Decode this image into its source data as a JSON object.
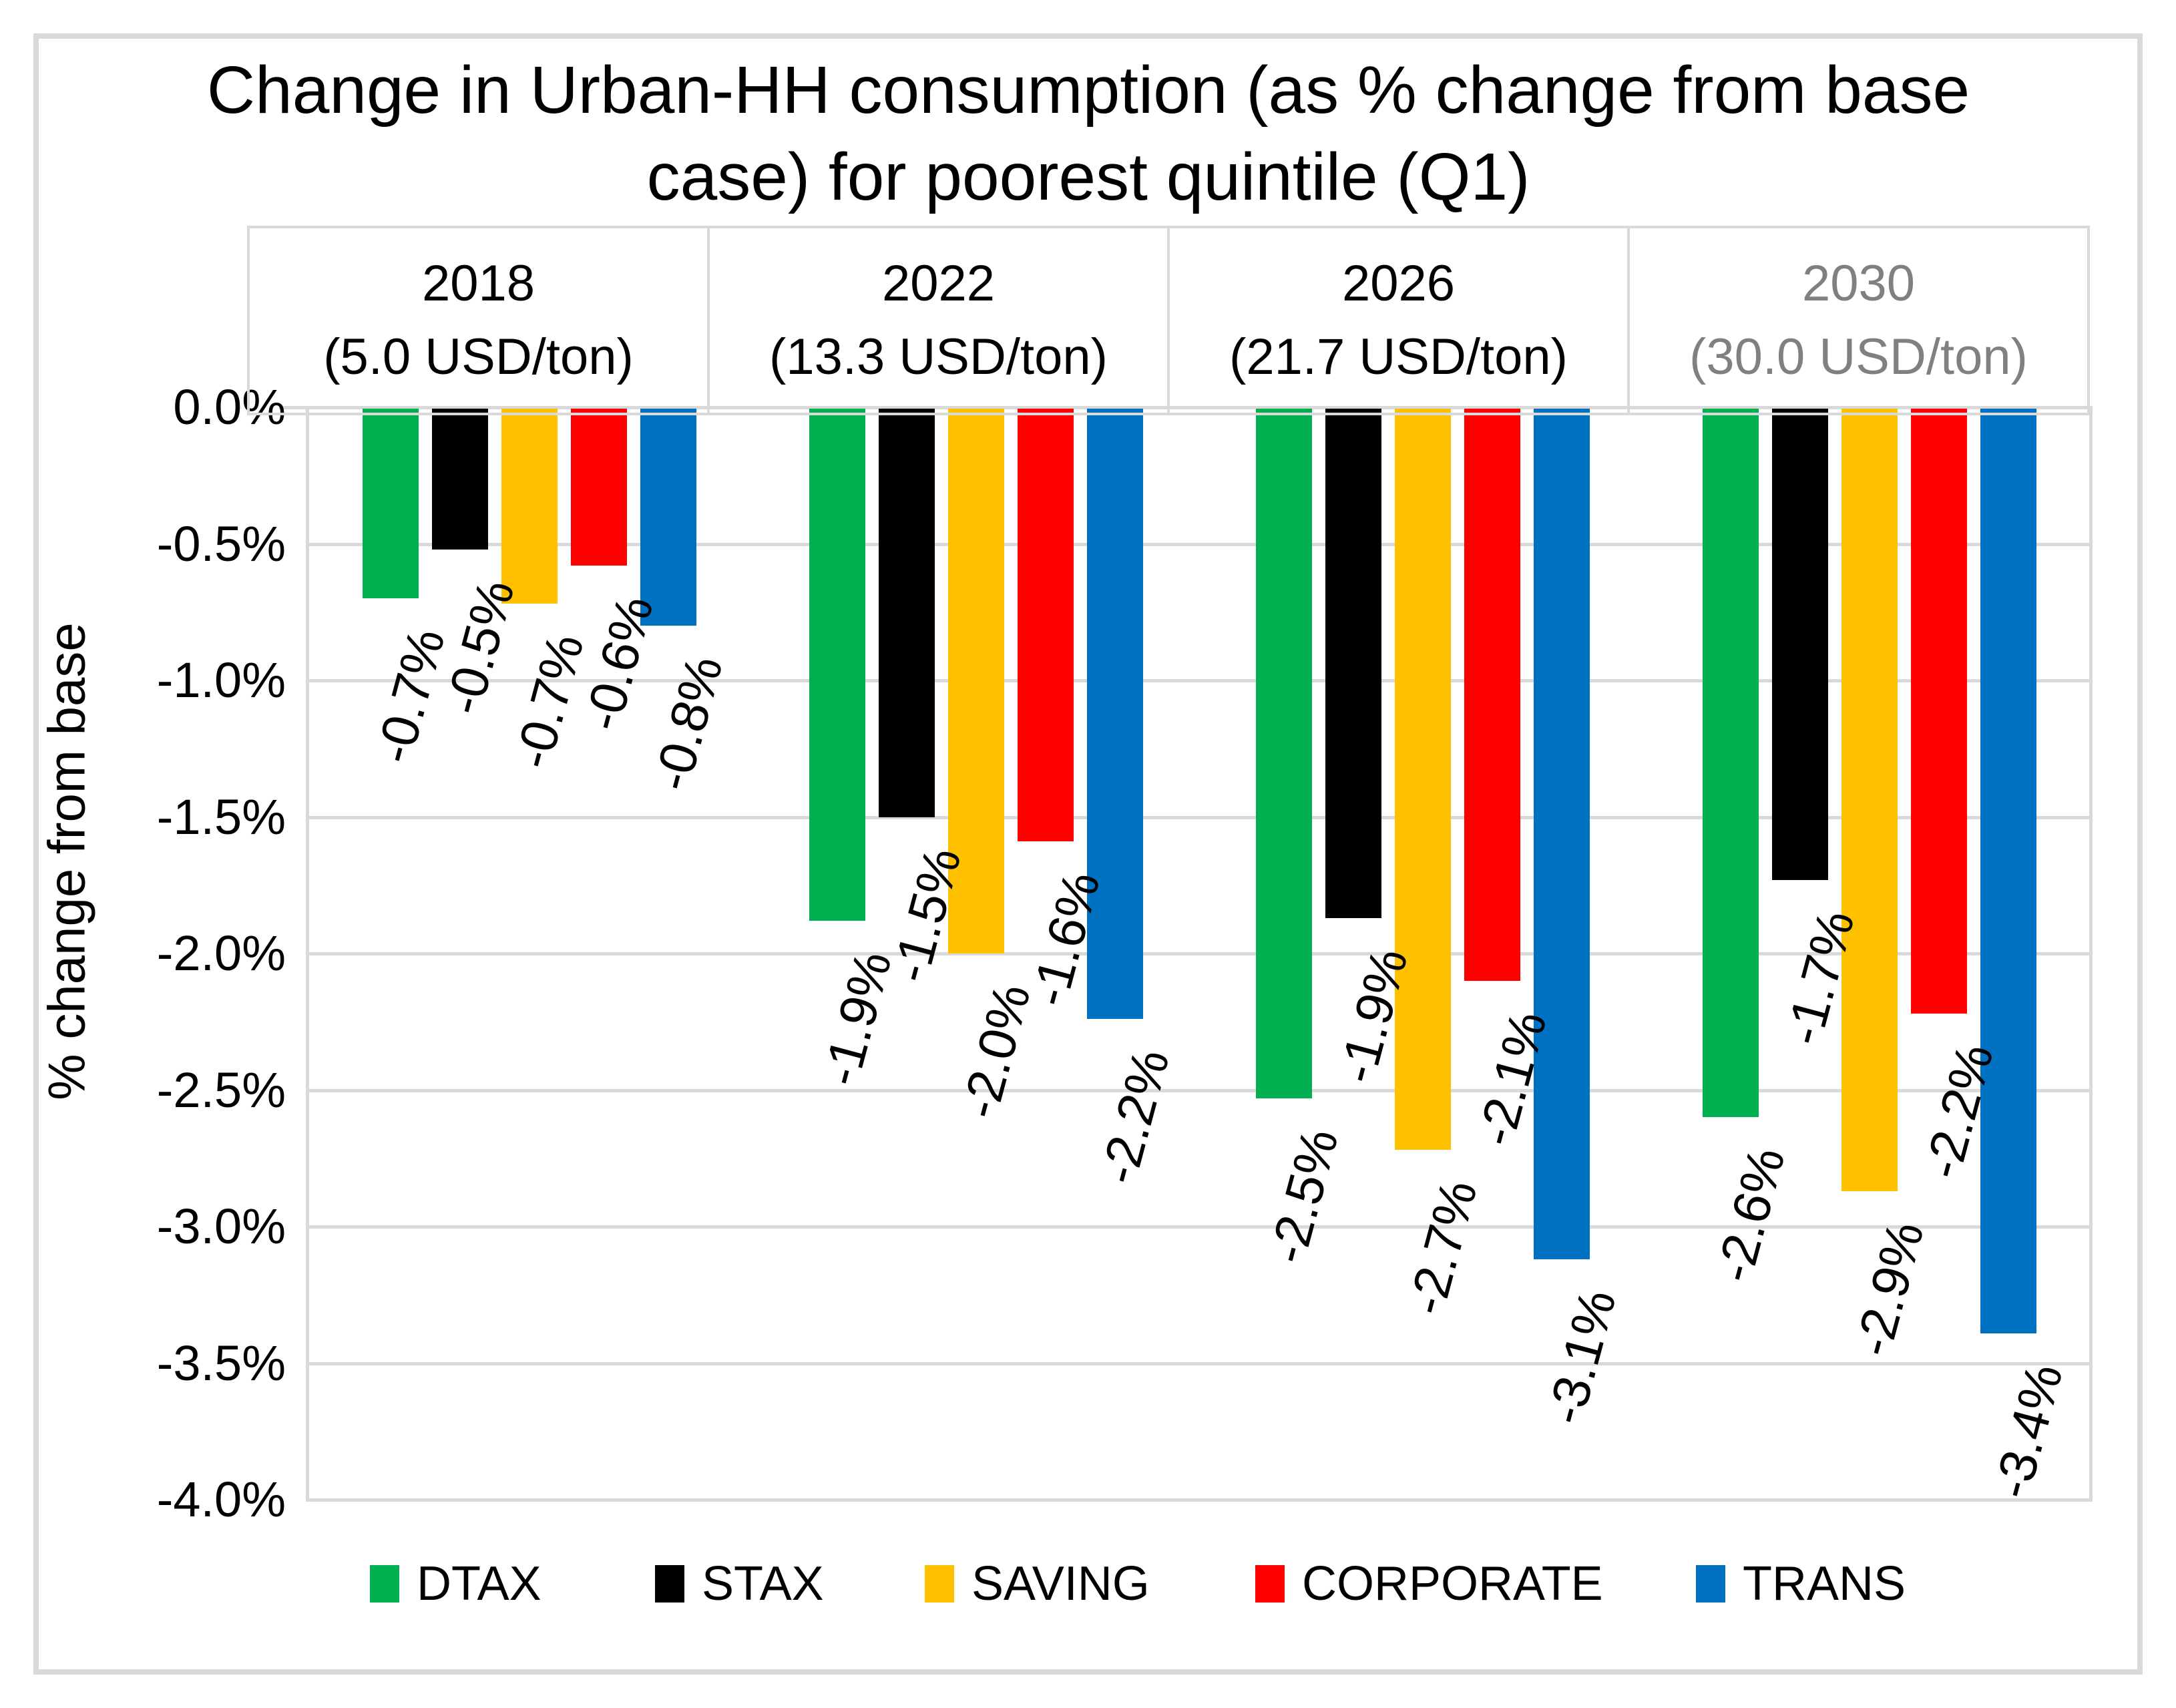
{
  "frame": {
    "border_color": "#D9D9D9",
    "gridline_color": "#D9D9D9"
  },
  "title": {
    "full": "Change in Urban-HH consumption (as % change from base case) for poorest quintile (Q1)",
    "lines": [
      "Change in Urban-HH consumption (as % change from base",
      "case) for poorest quintile (Q1)"
    ]
  },
  "y_axis": {
    "title": "% change from base",
    "ticks": [
      "0.0%",
      "-0.5%",
      "-1.0%",
      "-1.5%",
      "-2.0%",
      "-2.5%",
      "-3.0%",
      "-3.5%",
      "-4.0%"
    ]
  },
  "chart_data": {
    "type": "bar",
    "title": "Change in Urban-HH consumption (as % change from base case) for poorest quintile (Q1)",
    "xlabel": "",
    "ylabel": "% change from base",
    "ylim": [
      -4.0,
      0.0
    ],
    "ytick_step": 0.5,
    "grid": true,
    "legend_position": "bottom",
    "categories": [
      "2018",
      "2022",
      "2026",
      "2030"
    ],
    "groups": [
      {
        "label": "2018",
        "sublabel": "(5.0 USD/ton)",
        "text_color": "#000000"
      },
      {
        "label": "2022",
        "sublabel": "(13.3 USD/ton)",
        "text_color": "#000000"
      },
      {
        "label": "2026",
        "sublabel": "(21.7 USD/ton)",
        "text_color": "#000000"
      },
      {
        "label": "2030",
        "sublabel": "(30.0 USD/ton)",
        "text_color": "#808080"
      }
    ],
    "series": [
      {
        "name": "DTAX",
        "color": "#00B050",
        "values": [
          -0.7,
          -1.9,
          -2.5,
          -2.6
        ],
        "labels": [
          "-0.7%",
          "-1.9%",
          "-2.5%",
          "-2.6%"
        ],
        "bar_ends": [
          -0.7,
          -1.88,
          -2.53,
          -2.6
        ]
      },
      {
        "name": "STAX",
        "color": "#000000",
        "values": [
          -0.5,
          -1.5,
          -1.9,
          -1.7
        ],
        "labels": [
          "-0.5%",
          "-1.5%",
          "-1.9%",
          "-1.7%"
        ],
        "bar_ends": [
          -0.52,
          -1.5,
          -1.87,
          -1.73
        ]
      },
      {
        "name": "SAVING",
        "color": "#FFC000",
        "values": [
          -0.7,
          -2.0,
          -2.7,
          -2.9
        ],
        "labels": [
          "-0.7%",
          "-2.0%",
          "-2.7%",
          "-2.9%"
        ],
        "bar_ends": [
          -0.72,
          -2.0,
          -2.72,
          -2.87
        ]
      },
      {
        "name": "CORPORATE",
        "color": "#FF0000",
        "values": [
          -0.6,
          -1.6,
          -2.1,
          -2.2
        ],
        "labels": [
          "-0.6%",
          "-1.6%",
          "-2.1%",
          "-2.2%"
        ],
        "bar_ends": [
          -0.58,
          -1.59,
          -2.1,
          -2.22
        ]
      },
      {
        "name": "TRANS",
        "color": "#0070C0",
        "values": [
          -0.8,
          -2.2,
          -3.1,
          -3.4
        ],
        "labels": [
          "-0.8%",
          "-2.2%",
          "-3.1%",
          "-3.4%"
        ],
        "bar_ends": [
          -0.8,
          -2.24,
          -3.12,
          -3.39
        ]
      }
    ]
  }
}
